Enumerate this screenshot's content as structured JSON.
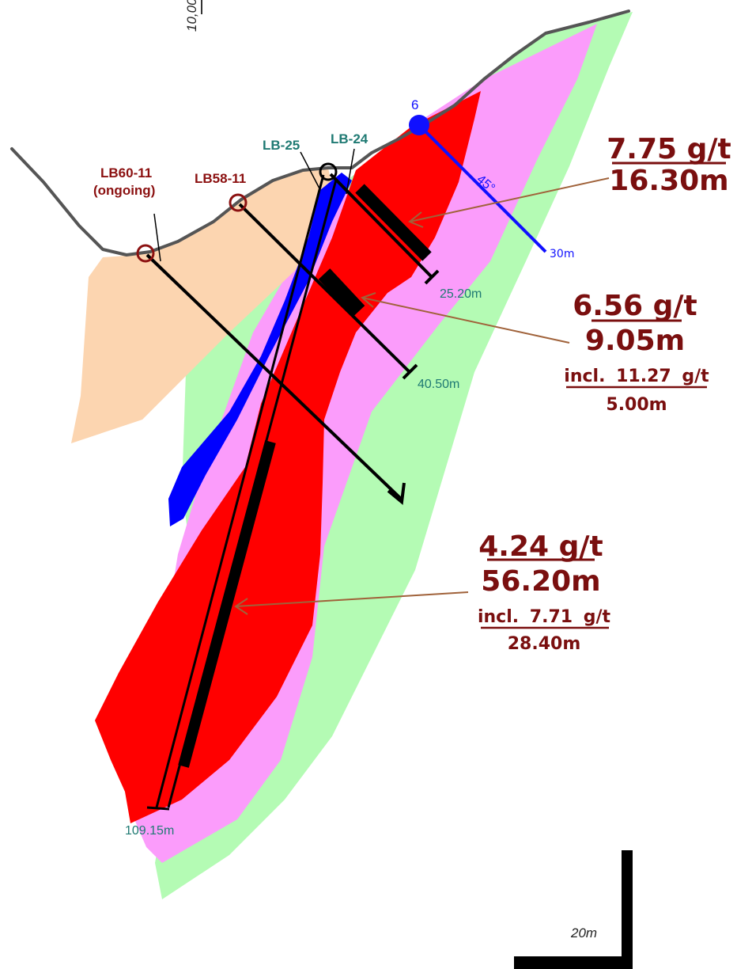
{
  "section": {
    "grid_label": "10,00",
    "scale_label": "20m"
  },
  "drillholes": [
    {
      "name": "LB60-11",
      "status": "(ongoing)",
      "color": "#8b1010"
    },
    {
      "name": "LB58-11",
      "color": "#8b1010"
    },
    {
      "name": "LB-25",
      "color": "#1f7a73"
    },
    {
      "name": "LB-24",
      "color": "#1f7a73"
    }
  ],
  "hole_6": {
    "label": "6",
    "dip_label": "45°",
    "depth_label": "30m",
    "color": "#1010ff"
  },
  "depths": {
    "lb24": "25.20m",
    "lb58": "40.50m",
    "lb25": "109.15m"
  },
  "intercepts": [
    {
      "grade": "7.75 g/t",
      "width": "16.30m"
    },
    {
      "grade": "6.56 g/t",
      "width": "9.05m",
      "incl_prefix": "incl.",
      "incl_grade": "11.27",
      "incl_unit": "g/t",
      "incl_width": "5.00m"
    },
    {
      "grade": "4.24 g/t",
      "width": "56.20m",
      "incl_prefix": "incl.",
      "incl_grade": "7.71",
      "incl_unit": "g/t",
      "incl_width": "28.40m"
    }
  ],
  "colors": {
    "overburden": "#fcd5b0",
    "outer_zone": "#b4fbb4",
    "alteration": "#fb9cfb",
    "ore_zone": "#ff0000",
    "dyke": "#0000ff",
    "annotation": "#7a0f0f",
    "leader": "#a0623a"
  }
}
